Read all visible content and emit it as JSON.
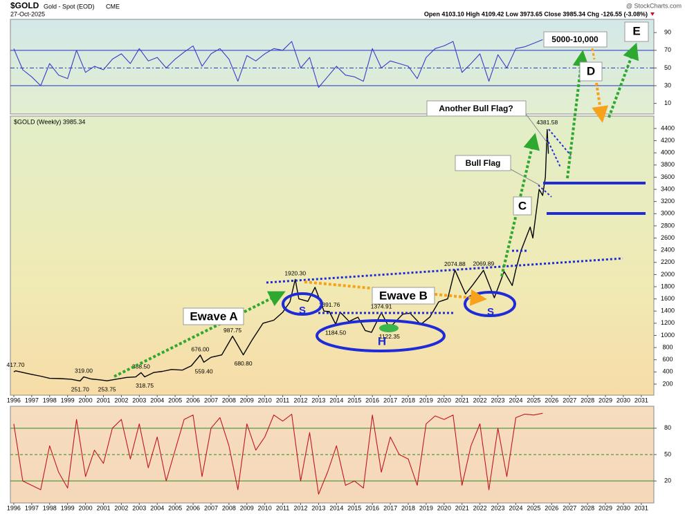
{
  "header": {
    "symbol": "$GOLD",
    "name": "Gold - Spot (EOD)",
    "exchange": "CME",
    "date": "27-Oct-2025",
    "ohlc": "Open 4103.10  High 4109.42  Low 3973.65  Close 3985.34  Chg -126.55 (-3.08%)",
    "source": "@ StockCharts.com",
    "price_legend": "$GOLD (Weekly) 3985.34"
  },
  "chart_data": [
    {
      "type": "line",
      "color": "#3a3ac8",
      "x": [
        1996,
        1996.5,
        1997,
        1997.5,
        1998,
        1998.5,
        1999,
        1999.5,
        2000,
        2000.5,
        2001,
        2001.5,
        2002,
        2002.5,
        2003,
        2003.5,
        2004,
        2004.5,
        2005,
        2005.5,
        2006,
        2006.5,
        2007,
        2007.5,
        2008,
        2008.5,
        2009,
        2009.5,
        2010,
        2010.5,
        2011,
        2011.5,
        2012,
        2012.5,
        2013,
        2013.5,
        2014,
        2014.5,
        2015,
        2015.5,
        2016,
        2016.5,
        2017,
        2017.5,
        2018,
        2018.5,
        2019,
        2019.5,
        2020,
        2020.5,
        2021,
        2021.5,
        2022,
        2022.5,
        2023,
        2023.5,
        2024,
        2024.5,
        2025,
        2025.5
      ],
      "values": [
        72,
        48,
        40,
        30,
        55,
        42,
        38,
        70,
        45,
        52,
        48,
        60,
        66,
        55,
        72,
        58,
        62,
        50,
        60,
        68,
        75,
        52,
        66,
        72,
        60,
        35,
        64,
        58,
        66,
        72,
        70,
        80,
        50,
        62,
        28,
        40,
        52,
        42,
        40,
        35,
        72,
        50,
        58,
        55,
        52,
        38,
        62,
        72,
        75,
        80,
        45,
        55,
        66,
        35,
        65,
        50,
        72,
        74,
        78,
        82
      ],
      "xlim": [
        1995.81,
        2031.7
      ],
      "ylim": [
        -2,
        105
      ],
      "yticks": [
        90,
        70,
        50,
        30,
        10
      ],
      "ref_lines": [
        70,
        50,
        30
      ]
    },
    {
      "type": "line",
      "color": "#000000",
      "x": [
        1996,
        1996.1,
        1996.6,
        1997,
        1997.5,
        1998,
        1998.6,
        1999.2,
        1999.7,
        1999.9,
        2000.3,
        2000.8,
        2001.2,
        2001.7,
        2002.3,
        2002.8,
        2003.1,
        2003.3,
        2003.8,
        2004.3,
        2004.8,
        2005.4,
        2005.9,
        2006.4,
        2006.6,
        2007,
        2007.6,
        2008.2,
        2008.8,
        2009.3,
        2009.9,
        2010.5,
        2011,
        2011.4,
        2011.7,
        2011.9,
        2012.4,
        2012.8,
        2013.3,
        2013.6,
        2013.95,
        2014.2,
        2014.7,
        2015.2,
        2015.6,
        2015.95,
        2016.5,
        2016.95,
        2017.7,
        2018.1,
        2018.7,
        2019.2,
        2019.7,
        2020.2,
        2020.6,
        2021.2,
        2021.6,
        2022.2,
        2022.8,
        2023.35,
        2023.8,
        2024,
        2024.3,
        2024.8,
        2024.95,
        2025.3,
        2025.5,
        2025.65,
        2025.75,
        2025.82
      ],
      "values": [
        400,
        417.7,
        385,
        360,
        330,
        295,
        290,
        280,
        251.7,
        319,
        285,
        270,
        253.75,
        280,
        310,
        318,
        388.5,
        318.75,
        390,
        410,
        440,
        430,
        500,
        676,
        559.4,
        640,
        680,
        987.75,
        680.8,
        930,
        1200,
        1250,
        1380,
        1550,
        1920.3,
        1600,
        1560,
        1790,
        1400,
        1391.76,
        1184.5,
        1385,
        1230,
        1300,
        1080,
        1050,
        1374.91,
        1122.35,
        1350,
        1365,
        1180,
        1300,
        1550,
        1600,
        2074.88,
        1680,
        1830,
        2069.89,
        1618.6,
        2050,
        1820,
        2080,
        2400,
        2780,
        2600,
        3400,
        3300,
        3600,
        4381.58,
        3985.34
      ],
      "xlim": [
        1995.81,
        2031.7
      ],
      "ylim": [
        18,
        4604
      ],
      "yticks": [
        200,
        400,
        600,
        800,
        1000,
        1200,
        1400,
        1600,
        1800,
        2000,
        2200,
        2400,
        2600,
        2800,
        3000,
        3200,
        3400,
        3600,
        3800,
        4000,
        4200,
        4400
      ],
      "xticks": [
        1996,
        1997,
        1998,
        1999,
        2000,
        2001,
        2002,
        2003,
        2004,
        2005,
        2006,
        2007,
        2008,
        2009,
        2010,
        2011,
        2012,
        2013,
        2014,
        2015,
        2016,
        2017,
        2018,
        2019,
        2020,
        2021,
        2022,
        2023,
        2024,
        2025,
        2026,
        2027,
        2028,
        2029,
        2030,
        2031
      ],
      "price_labels": [
        {
          "x": 1996.1,
          "value": 417.7,
          "label": "417.70"
        },
        {
          "x": 1999.9,
          "value": 319,
          "label": "319.00"
        },
        {
          "x": 1999.7,
          "value": 251.7,
          "label": "251.70"
        },
        {
          "x": 2001.2,
          "value": 253.75,
          "label": "253.75"
        },
        {
          "x": 2003.1,
          "value": 388.5,
          "label": "388.50"
        },
        {
          "x": 2003.3,
          "value": 318.75,
          "label": "318.75"
        },
        {
          "x": 2006.4,
          "value": 676,
          "label": "676.00"
        },
        {
          "x": 2006.6,
          "value": 559.4,
          "label": "559.40"
        },
        {
          "x": 2008.2,
          "value": 987.75,
          "label": "987.75"
        },
        {
          "x": 2008.8,
          "value": 680.8,
          "label": "680.80"
        },
        {
          "x": 2011.7,
          "value": 1920.3,
          "label": "1920.30"
        },
        {
          "x": 2013.6,
          "value": 1391.76,
          "label": "1391.76"
        },
        {
          "x": 2013.95,
          "value": 1184.5,
          "label": "1184.50"
        },
        {
          "x": 2016.5,
          "value": 1374.91,
          "label": "1374.91"
        },
        {
          "x": 2016.95,
          "value": 1122.35,
          "label": "1122.35"
        },
        {
          "x": 2020.6,
          "value": 2074.88,
          "label": "2074.88"
        },
        {
          "x": 2022.2,
          "value": 2069.89,
          "label": "2069.89"
        },
        {
          "x": 2025.75,
          "value": 4381.58,
          "label": "4381.58"
        }
      ],
      "annotations": [
        "Ewave A",
        "Ewave B",
        "Bull Flag",
        "Another Bull Flag?",
        "5000-10,000",
        "C",
        "D",
        "E",
        "H",
        "S",
        "S"
      ]
    },
    {
      "type": "line",
      "color": "#c0151b",
      "x": [
        1996,
        1996.5,
        1997,
        1997.5,
        1998,
        1998.5,
        1999,
        1999.5,
        2000,
        2000.5,
        2001,
        2001.5,
        2002,
        2002.5,
        2003,
        2003.5,
        2004,
        2004.5,
        2005,
        2005.5,
        2006,
        2006.5,
        2007,
        2007.5,
        2008,
        2008.5,
        2009,
        2009.5,
        2010,
        2010.5,
        2011,
        2011.5,
        2012,
        2012.5,
        2013,
        2013.5,
        2014,
        2014.5,
        2015,
        2015.5,
        2016,
        2016.5,
        2017,
        2017.5,
        2018,
        2018.5,
        2019,
        2019.5,
        2020,
        2020.5,
        2021,
        2021.5,
        2022,
        2022.5,
        2023,
        2023.5,
        2024,
        2024.5,
        2025,
        2025.5
      ],
      "values": [
        85,
        20,
        15,
        10,
        60,
        30,
        12,
        90,
        25,
        55,
        40,
        80,
        90,
        45,
        85,
        35,
        70,
        20,
        55,
        90,
        95,
        25,
        80,
        92,
        60,
        10,
        85,
        55,
        70,
        95,
        88,
        96,
        20,
        75,
        5,
        30,
        60,
        15,
        20,
        12,
        95,
        30,
        70,
        50,
        45,
        15,
        85,
        94,
        90,
        95,
        15,
        60,
        85,
        10,
        80,
        25,
        92,
        96,
        95,
        97
      ],
      "xlim": [
        1995.81,
        2031.7
      ],
      "ylim": [
        -5,
        105
      ],
      "yticks": [
        80,
        50,
        20
      ],
      "ref_lines": [
        80,
        50,
        20
      ],
      "xticks": [
        1996,
        1997,
        1998,
        1999,
        2000,
        2001,
        2002,
        2003,
        2004,
        2005,
        2006,
        2007,
        2008,
        2009,
        2010,
        2011,
        2012,
        2013,
        2014,
        2015,
        2016,
        2017,
        2018,
        2019,
        2020,
        2021,
        2022,
        2023,
        2024,
        2025,
        2026,
        2027,
        2028,
        2029,
        2030,
        2031
      ]
    }
  ]
}
